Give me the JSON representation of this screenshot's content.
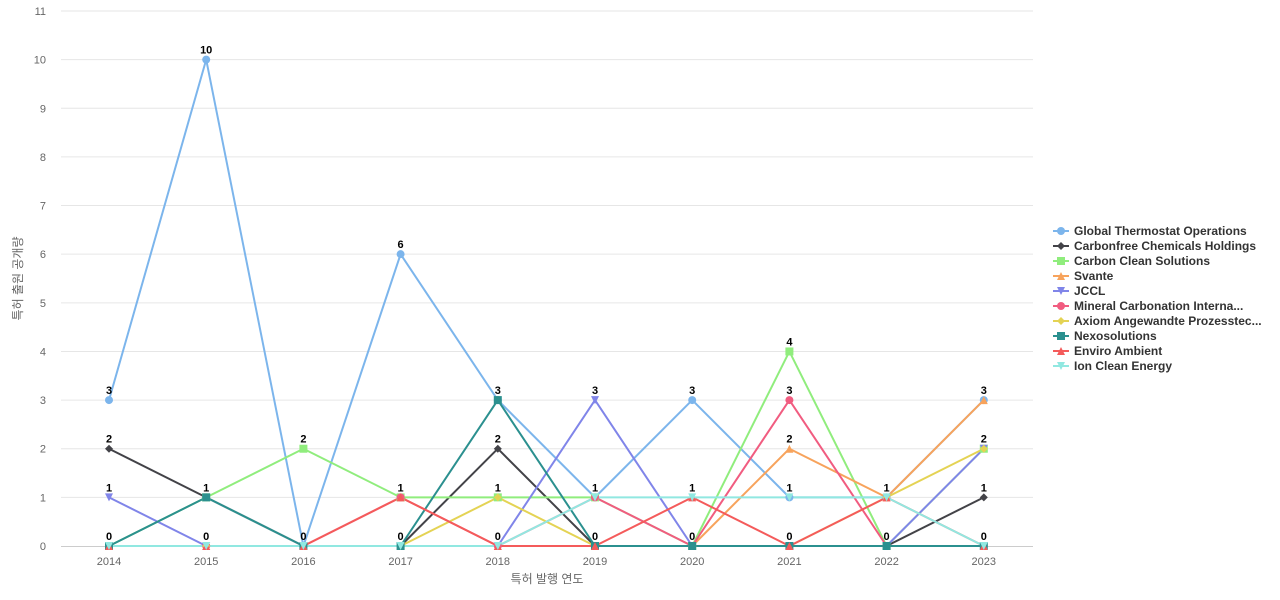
{
  "chart_data": {
    "type": "line",
    "xlabel": "특허 발행 연도",
    "ylabel": "특허 출원 공개량",
    "ylim": [
      0,
      11
    ],
    "yticks": [
      0,
      1,
      2,
      3,
      4,
      5,
      6,
      7,
      8,
      9,
      10,
      11
    ],
    "categories": [
      "2014",
      "2015",
      "2016",
      "2017",
      "2018",
      "2019",
      "2020",
      "2021",
      "2022",
      "2023"
    ],
    "grid": true,
    "legend_position": "right",
    "series": [
      {
        "name": "Global Thermostat Operations",
        "color": "#7cb5ec",
        "marker": "circle",
        "values": [
          3,
          10,
          0,
          6,
          3,
          1,
          3,
          1,
          1,
          3
        ]
      },
      {
        "name": "Carbonfree Chemicals Holdings",
        "color": "#434348",
        "marker": "diamond",
        "values": [
          2,
          1,
          0,
          0,
          2,
          0,
          0,
          0,
          0,
          1
        ]
      },
      {
        "name": "Carbon Clean Solutions",
        "color": "#90ed7d",
        "marker": "square",
        "values": [
          0,
          1,
          2,
          1,
          1,
          1,
          0,
          4,
          0,
          2
        ]
      },
      {
        "name": "Svante",
        "color": "#f7a35c",
        "marker": "triangle",
        "values": [
          0,
          0,
          0,
          0,
          0,
          0,
          0,
          2,
          1,
          3
        ]
      },
      {
        "name": "JCCL",
        "color": "#8085e9",
        "marker": "triangle-down",
        "values": [
          1,
          0,
          0,
          0,
          0,
          3,
          0,
          0,
          0,
          2
        ]
      },
      {
        "name": "Mineral Carbonation Interna...",
        "color": "#f15c80",
        "marker": "circle",
        "values": [
          0,
          0,
          0,
          1,
          0,
          1,
          0,
          3,
          0,
          0
        ]
      },
      {
        "name": "Axiom Angewandte Prozesstec...",
        "color": "#e4d354",
        "marker": "diamond",
        "values": [
          0,
          0,
          0,
          0,
          1,
          0,
          0,
          0,
          1,
          2
        ]
      },
      {
        "name": "Nexosolutions",
        "color": "#2b908f",
        "marker": "square",
        "values": [
          0,
          1,
          0,
          0,
          3,
          0,
          0,
          0,
          0,
          0
        ]
      },
      {
        "name": "Enviro Ambient",
        "color": "#f45b5b",
        "marker": "triangle",
        "values": [
          0,
          0,
          0,
          1,
          0,
          0,
          1,
          0,
          1,
          0
        ]
      },
      {
        "name": "Ion Clean Energy",
        "color": "#91e8e1",
        "marker": "triangle-down",
        "values": [
          0,
          0,
          0,
          0,
          0,
          1,
          1,
          1,
          1,
          0
        ]
      }
    ],
    "data_labels": [
      {
        "category": "2014",
        "text": "3",
        "value": 3
      },
      {
        "category": "2014",
        "text": "2",
        "value": 2
      },
      {
        "category": "2014",
        "text": "1",
        "value": 1
      },
      {
        "category": "2014",
        "text": "0",
        "value": 0
      },
      {
        "category": "2015",
        "text": "10",
        "value": 10
      },
      {
        "category": "2015",
        "text": "1",
        "value": 1
      },
      {
        "category": "2015",
        "text": "0",
        "value": 0
      },
      {
        "category": "2016",
        "text": "2",
        "value": 2
      },
      {
        "category": "2016",
        "text": "0",
        "value": 0
      },
      {
        "category": "2017",
        "text": "6",
        "value": 6
      },
      {
        "category": "2017",
        "text": "1",
        "value": 1
      },
      {
        "category": "2017",
        "text": "0",
        "value": 0
      },
      {
        "category": "2018",
        "text": "3",
        "value": 3
      },
      {
        "category": "2018",
        "text": "2",
        "value": 2
      },
      {
        "category": "2018",
        "text": "1",
        "value": 1
      },
      {
        "category": "2018",
        "text": "0",
        "value": 0
      },
      {
        "category": "2019",
        "text": "3",
        "value": 3
      },
      {
        "category": "2019",
        "text": "1",
        "value": 1
      },
      {
        "category": "2019",
        "text": "0",
        "value": 0
      },
      {
        "category": "2020",
        "text": "3",
        "value": 3
      },
      {
        "category": "2020",
        "text": "1",
        "value": 1
      },
      {
        "category": "2020",
        "text": "0",
        "value": 0
      },
      {
        "category": "2021",
        "text": "4",
        "value": 4
      },
      {
        "category": "2021",
        "text": "3",
        "value": 3
      },
      {
        "category": "2021",
        "text": "2",
        "value": 2
      },
      {
        "category": "2021",
        "text": "1",
        "value": 1
      },
      {
        "category": "2021",
        "text": "0",
        "value": 0
      },
      {
        "category": "2022",
        "text": "1",
        "value": 1
      },
      {
        "category": "2022",
        "text": "0",
        "value": 0
      },
      {
        "category": "2023",
        "text": "3",
        "value": 3
      },
      {
        "category": "2023",
        "text": "2",
        "value": 2
      },
      {
        "category": "2023",
        "text": "1",
        "value": 1
      },
      {
        "category": "2023",
        "text": "0",
        "value": 0
      }
    ]
  }
}
